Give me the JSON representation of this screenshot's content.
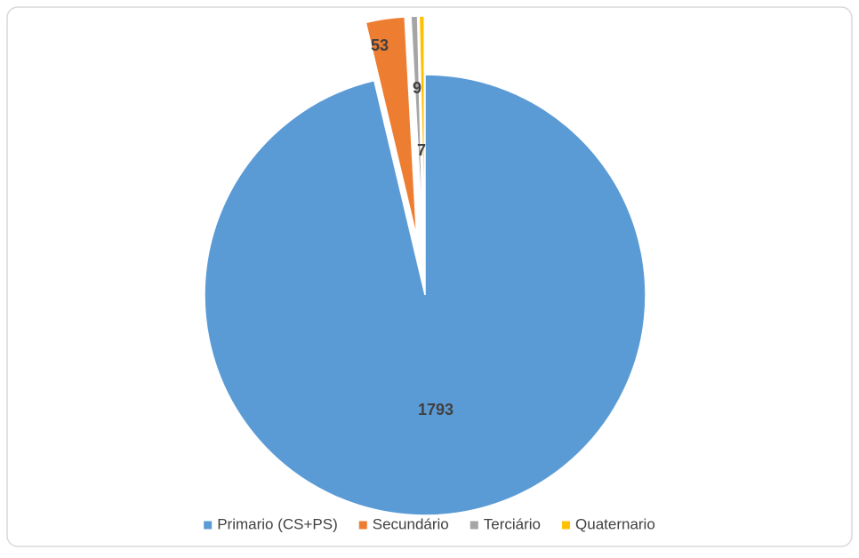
{
  "chart_data": {
    "type": "pie",
    "categories": [
      "Primario (CS+PS)",
      "Secundário",
      "Terciário",
      "Quaternario"
    ],
    "values": [
      1793,
      53,
      9,
      7
    ],
    "colors": [
      "#5b9bd5",
      "#ed7d31",
      "#a5a5a5",
      "#ffc000"
    ],
    "legend": "bottom"
  }
}
